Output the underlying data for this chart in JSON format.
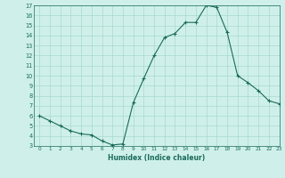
{
  "x": [
    0,
    1,
    2,
    3,
    4,
    5,
    6,
    7,
    8,
    9,
    10,
    11,
    12,
    13,
    14,
    15,
    16,
    17,
    18,
    19,
    20,
    21,
    22,
    23
  ],
  "y": [
    6,
    5.5,
    5,
    4.5,
    4.2,
    4.1,
    3.5,
    3.1,
    3.2,
    7.3,
    9.7,
    12.0,
    13.8,
    14.2,
    15.3,
    15.3,
    17.0,
    16.8,
    14.3,
    10.0,
    9.3,
    8.5,
    7.5,
    7.2
  ],
  "xlabel": "Humidex (Indice chaleur)",
  "ylim": [
    3,
    17
  ],
  "xlim": [
    -0.5,
    23
  ],
  "yticks": [
    3,
    4,
    5,
    6,
    7,
    8,
    9,
    10,
    11,
    12,
    13,
    14,
    15,
    16,
    17
  ],
  "xticks": [
    0,
    1,
    2,
    3,
    4,
    5,
    6,
    7,
    8,
    9,
    10,
    11,
    12,
    13,
    14,
    15,
    16,
    17,
    18,
    19,
    20,
    21,
    22,
    23
  ],
  "line_color": "#1a6b5a",
  "marker": "+",
  "bg_color": "#cff0ea",
  "grid_color": "#a8d8cf"
}
